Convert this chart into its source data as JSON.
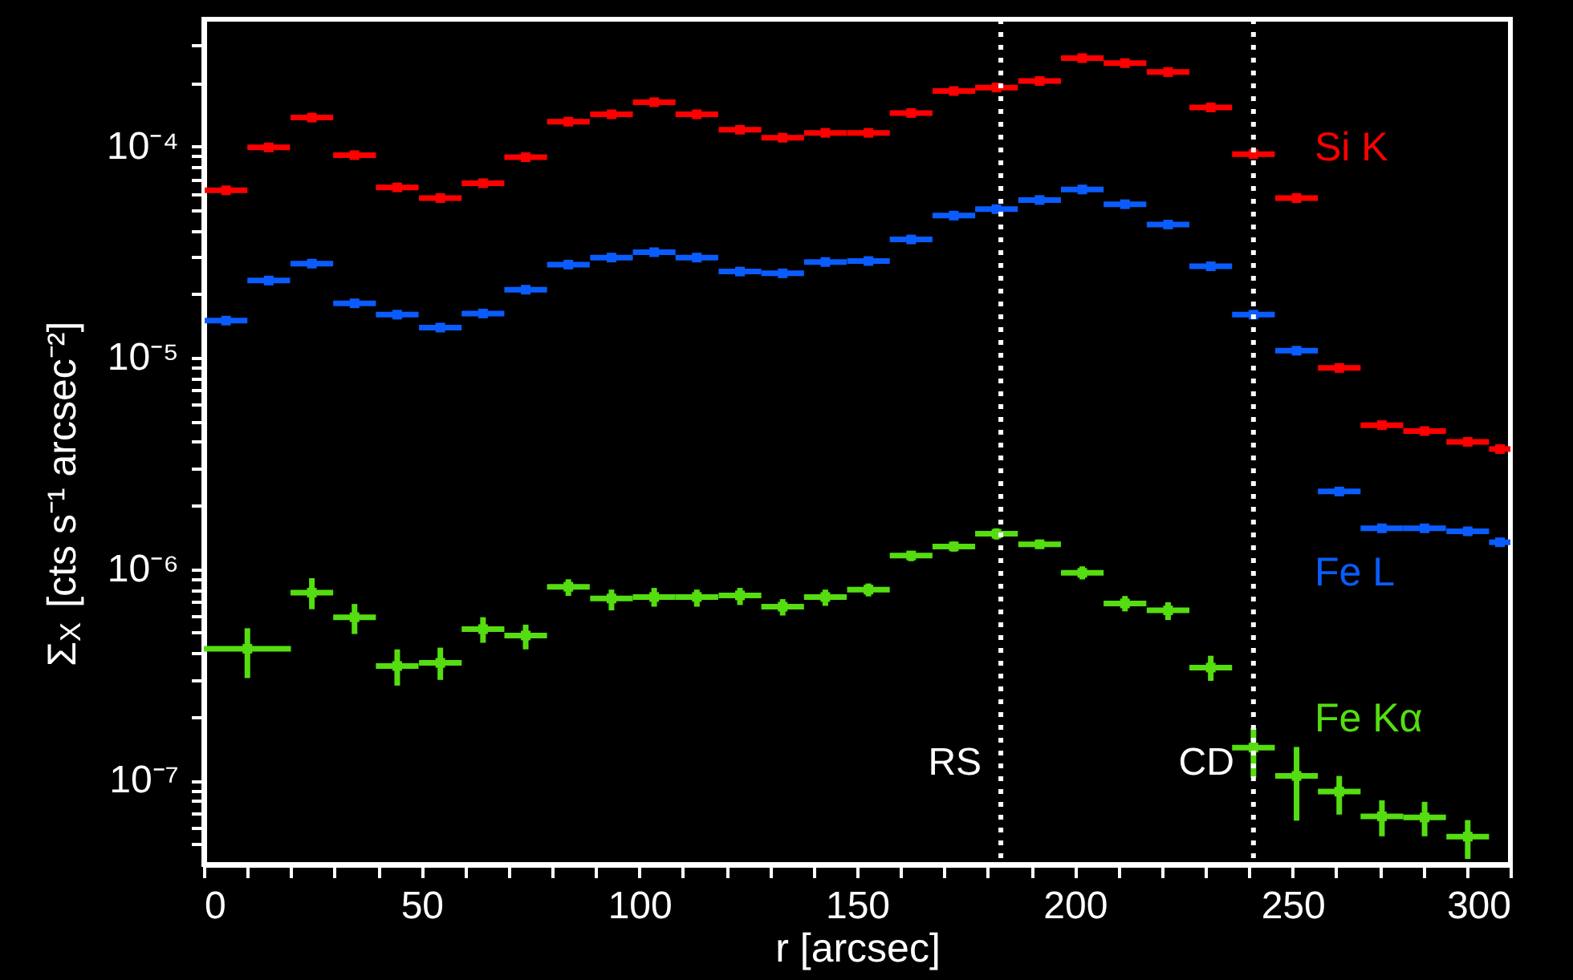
{
  "chart_data": {
    "type": "scatter",
    "xlabel": "r [arcsec]",
    "ylabel": "Σ$_{X}$ [cts s⁻¹ arcsec⁻²]",
    "log": "y",
    "grid": false,
    "marker": "square",
    "xlim": [
      0,
      300
    ],
    "ylim": [
      4e-08,
      0.0004
    ],
    "xticks": [
      0,
      {
        "value": 10,
        "label": null
      },
      {
        "value": 20,
        "label": null
      },
      {
        "value": 30,
        "label": null
      },
      {
        "value": 40,
        "label": null
      },
      50,
      {
        "value": 60,
        "label": null
      },
      {
        "value": 70,
        "label": null
      },
      {
        "value": 80,
        "label": null
      },
      {
        "value": 90,
        "label": null
      },
      100,
      {
        "value": 110,
        "label": null
      },
      {
        "value": 120,
        "label": null
      },
      {
        "value": 130,
        "label": null
      },
      {
        "value": 140,
        "label": null
      },
      150,
      {
        "value": 160,
        "label": null
      },
      {
        "value": 170,
        "label": null
      },
      {
        "value": 180,
        "label": null
      },
      {
        "value": 190,
        "label": null
      },
      200,
      {
        "value": 210,
        "label": null
      },
      {
        "value": 220,
        "label": null
      },
      {
        "value": 230,
        "label": null
      },
      {
        "value": 240,
        "label": null
      },
      250,
      {
        "value": 260,
        "label": null
      },
      {
        "value": 270,
        "label": null
      },
      {
        "value": 280,
        "label": null
      },
      {
        "value": 290,
        "label": null
      },
      300
    ],
    "yticks": [
      {
        "value": 5e-08,
        "label": null
      },
      {
        "value": 6e-08,
        "label": null
      },
      {
        "value": 7e-08,
        "label": null
      },
      {
        "value": 8e-08,
        "label": null
      },
      {
        "value": 9e-08,
        "label": null
      },
      {
        "value": 1e-07,
        "label": "10⁻⁷"
      },
      {
        "value": 2e-07,
        "label": null
      },
      {
        "value": 3e-07,
        "label": null
      },
      {
        "value": 4e-07,
        "label": null
      },
      {
        "value": 5e-07,
        "label": null
      },
      {
        "value": 6e-07,
        "label": null
      },
      {
        "value": 7e-07,
        "label": null
      },
      {
        "value": 8e-07,
        "label": null
      },
      {
        "value": 9e-07,
        "label": null
      },
      {
        "value": 1e-06,
        "label": "10⁻⁶"
      },
      {
        "value": 2e-06,
        "label": null
      },
      {
        "value": 3e-06,
        "label": null
      },
      {
        "value": 4e-06,
        "label": null
      },
      {
        "value": 5e-06,
        "label": null
      },
      {
        "value": 6e-06,
        "label": null
      },
      {
        "value": 7e-06,
        "label": null
      },
      {
        "value": 8e-06,
        "label": null
      },
      {
        "value": 9e-06,
        "label": null
      },
      {
        "value": 1e-05,
        "label": "10⁻⁵"
      },
      {
        "value": 2e-05,
        "label": null
      },
      {
        "value": 3e-05,
        "label": null
      },
      {
        "value": 4e-05,
        "label": null
      },
      {
        "value": 5e-05,
        "label": null
      },
      {
        "value": 6e-05,
        "label": null
      },
      {
        "value": 7e-05,
        "label": null
      },
      {
        "value": 8e-05,
        "label": null
      },
      {
        "value": 9e-05,
        "label": null
      },
      {
        "value": 0.0001,
        "label": "10⁻⁴"
      },
      {
        "value": 0.0002,
        "label": null
      },
      {
        "value": 0.0003,
        "label": null
      }
    ],
    "x": [
      5.1,
      14.9,
      24.8,
      34.6,
      44.4,
      54.3,
      64.1,
      73.9,
      83.7,
      93.6,
      103.4,
      113.2,
      123.1,
      132.9,
      142.7,
      152.6,
      162.4,
      172.2,
      182.0,
      191.9,
      201.7,
      211.5,
      221.4,
      231.2,
      241.0,
      250.9,
      260.7,
      270.5,
      280.3,
      290.2,
      297.6
    ],
    "ref_lines": [
      {
        "axis": "x",
        "value": 183,
        "label": "RS",
        "color": "#ffffff",
        "line_style": "dotted"
      },
      {
        "axis": "x",
        "value": 241,
        "label": "CD",
        "color": "#ffffff",
        "line_style": "dotted"
      }
    ],
    "series": [
      {
        "name": "Si K",
        "color": "#ff0000",
        "values": [
          6.2e-05,
          9.9e-05,
          0.000137,
          9.1e-05,
          6.4e-05,
          5.7e-05,
          6.7e-05,
          8.9e-05,
          0.000131,
          0.000142,
          0.000162,
          0.000142,
          0.00012,
          0.00011,
          0.000116,
          0.000116,
          0.000144,
          0.000183,
          0.00019,
          0.000204,
          0.000262,
          0.000248,
          0.000225,
          0.000153,
          9.2e-05,
          5.7e-05,
          8.95e-06,
          4.8e-06,
          4.5e-06,
          4e-06,
          3.7e-06
        ],
        "xerrors": [
          4.9,
          4.9,
          4.9,
          4.9,
          4.9,
          4.9,
          4.9,
          4.9,
          4.9,
          4.9,
          4.9,
          4.9,
          4.9,
          4.9,
          4.9,
          4.9,
          4.9,
          4.9,
          4.9,
          4.9,
          4.9,
          4.9,
          4.9,
          4.9,
          4.9,
          4.9,
          4.9,
          4.9,
          4.9,
          4.9,
          [
            295.1,
            300
          ]
        ]
      },
      {
        "name": "Fe L",
        "color": "#0a5cff",
        "values": [
          1.5e-05,
          2.32e-05,
          2.79e-05,
          1.81e-05,
          1.6e-05,
          1.39e-05,
          1.62e-05,
          2.1e-05,
          2.76e-05,
          2.98e-05,
          3.16e-05,
          2.98e-05,
          2.56e-05,
          2.51e-05,
          2.84e-05,
          2.87e-05,
          3.63e-05,
          4.71e-05,
          5.05e-05,
          5.58e-05,
          6.26e-05,
          5.33e-05,
          4.27e-05,
          2.71e-05,
          1.6e-05,
          1.08e-05,
          2.33e-06,
          1.56e-06,
          1.56e-06,
          1.51e-06,
          1.34e-06
        ],
        "xerrors": [
          4.9,
          4.9,
          4.9,
          4.9,
          4.9,
          4.9,
          4.9,
          4.9,
          4.9,
          4.9,
          4.9,
          4.9,
          4.9,
          4.9,
          4.9,
          4.9,
          4.9,
          4.9,
          4.9,
          4.9,
          4.9,
          4.9,
          4.9,
          4.9,
          4.9,
          4.9,
          4.9,
          4.9,
          4.9,
          4.9,
          [
            295.1,
            300
          ]
        ]
      },
      {
        "name": "Fe Kα",
        "color": "#55dd11",
        "x": [
          10,
          24.8,
          34.6,
          44.4,
          54.3,
          64.1,
          73.9,
          83.7,
          93.6,
          103.4,
          113.2,
          123.1,
          132.9,
          142.7,
          152.6,
          162.4,
          172.2,
          182.0,
          191.9,
          201.7,
          211.5,
          221.4,
          231.2,
          241.0,
          250.9,
          260.7,
          270.5,
          280.3,
          290.2
        ],
        "values": [
          4.2e-07,
          7.74e-07,
          5.92e-07,
          3.48e-07,
          3.6e-07,
          5.2e-07,
          4.85e-07,
          8.25e-07,
          7.26e-07,
          7.38e-07,
          7.38e-07,
          7.51e-07,
          6.64e-07,
          7.38e-07,
          8e-07,
          1.16e-06,
          1.28e-06,
          1.47e-06,
          1.31e-06,
          9.6e-07,
          6.88e-07,
          6.38e-07,
          3.42e-07,
          1.43e-07,
          1.05e-07,
          8.85e-08,
          6.76e-08,
          6.68e-08,
          5.42e-08
        ],
        "xerrors": [
          10,
          4.9,
          4.9,
          4.9,
          4.9,
          4.9,
          4.9,
          4.9,
          4.9,
          4.9,
          4.9,
          4.9,
          4.9,
          4.9,
          4.9,
          4.9,
          4.9,
          4.9,
          4.9,
          4.9,
          4.9,
          4.9,
          4.9,
          4.9,
          4.9,
          4.9,
          4.9,
          4.9,
          4.9
        ],
        "errors": [
          [
            3.05e-07,
            5.25e-07
          ],
          [
            6.46e-07,
            9.06e-07
          ],
          [
            4.93e-07,
            6.84e-07
          ],
          [
            2.81e-07,
            4.17e-07
          ],
          [
            2.99e-07,
            4.25e-07
          ],
          [
            4.48e-07,
            5.92e-07
          ],
          [
            4.17e-07,
            5.46e-07
          ],
          [
            7.47e-07,
            8.95e-07
          ],
          [
            6.38e-07,
            8e-07
          ],
          [
            6.64e-07,
            8.15e-07
          ],
          [
            6.64e-07,
            8e-07
          ],
          [
            6.76e-07,
            8.15e-07
          ],
          [
            6.03e-07,
            7.21e-07
          ],
          [
            6.7e-07,
            8e-07
          ],
          [
            7.43e-07,
            8.55e-07
          ],
          [
            1.09e-06,
            1.22e-06
          ],
          [
            1.21e-06,
            1.35e-06
          ],
          [
            1.38e-06,
            1.56e-06
          ],
          [
            1.25e-06,
            1.38e-06
          ],
          [
            8.94e-07,
            1.03e-06
          ],
          [
            6.31e-07,
            7.46e-07
          ],
          [
            5.74e-07,
            6.97e-07
          ],
          [
            2.96e-07,
            3.89e-07
          ],
          [
            1.03e-07,
            1.77e-07
          ],
          [
            6.45e-08,
            1.44e-07
          ],
          [
            6.89e-08,
            1.05e-07
          ],
          [
            5.44e-08,
            8.05e-08
          ],
          [
            5.44e-08,
            7.92e-08
          ],
          [
            4.25e-08,
            6.49e-08
          ]
        ]
      }
    ]
  }
}
